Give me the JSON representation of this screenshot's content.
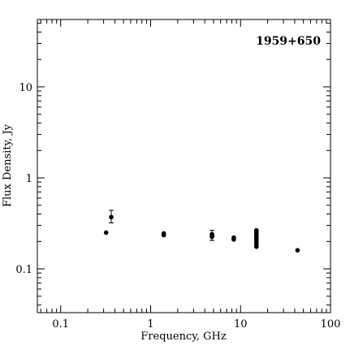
{
  "chart_data": {
    "type": "scatter",
    "title": "1959+650",
    "xlabel": "Frequency, GHz",
    "ylabel": "Flux Density, Jy",
    "xscale": "log",
    "yscale": "log",
    "xlim": [
      0.055,
      100
    ],
    "ylim": [
      0.033,
      55
    ],
    "x_ticks": [
      {
        "value": 0.1,
        "label": "0.1"
      },
      {
        "value": 1,
        "label": "1"
      },
      {
        "value": 10,
        "label": "10"
      },
      {
        "value": 100,
        "label": "100"
      }
    ],
    "y_ticks": [
      {
        "value": 0.1,
        "label": "0.1"
      },
      {
        "value": 1,
        "label": "1"
      },
      {
        "value": 10,
        "label": "10"
      }
    ],
    "points": [
      {
        "x": 0.32,
        "y": 0.25
      },
      {
        "x": 0.365,
        "y": 0.37,
        "err_lo": 0.32,
        "err_hi": 0.44
      },
      {
        "x": 1.4,
        "y": 0.235
      },
      {
        "x": 1.4,
        "y": 0.245
      },
      {
        "x": 4.8,
        "y": 0.225,
        "err_lo": 0.205,
        "err_hi": 0.265
      },
      {
        "x": 4.8,
        "y": 0.24
      },
      {
        "x": 4.85,
        "y": 0.23
      },
      {
        "x": 8.4,
        "y": 0.21
      },
      {
        "x": 8.4,
        "y": 0.22
      },
      {
        "x": 15,
        "y": 0.175
      },
      {
        "x": 15,
        "y": 0.185
      },
      {
        "x": 15,
        "y": 0.195
      },
      {
        "x": 15,
        "y": 0.205
      },
      {
        "x": 15,
        "y": 0.215
      },
      {
        "x": 15,
        "y": 0.225
      },
      {
        "x": 15,
        "y": 0.235
      },
      {
        "x": 15,
        "y": 0.245
      },
      {
        "x": 15,
        "y": 0.255
      },
      {
        "x": 15,
        "y": 0.265
      },
      {
        "x": 43,
        "y": 0.16
      }
    ],
    "grid": false,
    "legend": "none"
  }
}
